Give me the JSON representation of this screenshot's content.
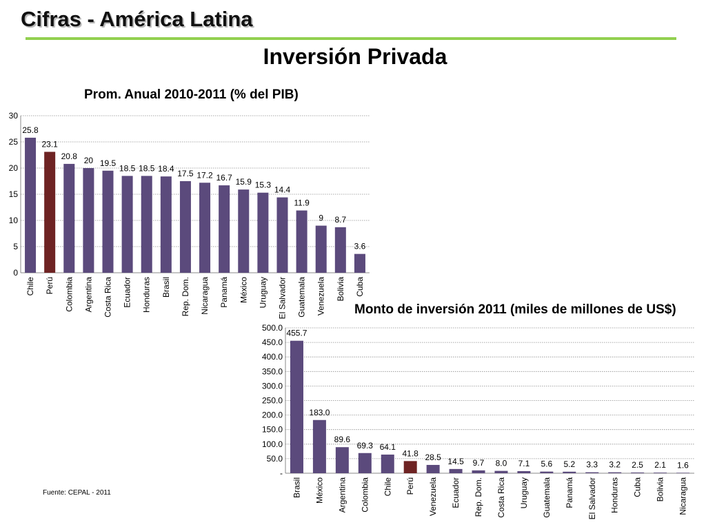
{
  "slide": {
    "title": "Cifras - América Latina",
    "heading": "Inversión Privada",
    "source": "Fuente: CEPAL - 2011"
  },
  "colors": {
    "bar": "#5b4a7c",
    "highlight": "#6e2323",
    "accent_line": "#92d050",
    "grid": "#8c8c8c"
  },
  "chart_data": [
    {
      "type": "bar",
      "title": "Prom. Anual 2010-2011  (% del PIB)",
      "categories": [
        "Chile",
        "Perú",
        "Colombia",
        "Argentina",
        "Costa Rica",
        "Ecuador",
        "Honduras",
        "Brasil",
        "Rep. Dom.",
        "Nicaragua",
        "Panamá",
        "México",
        "Uruguay",
        "El Salvador",
        "Guatemala",
        "Venezuela",
        "Bolivia",
        "Cuba"
      ],
      "values": [
        25.8,
        23.1,
        20.8,
        20,
        19.5,
        18.5,
        18.5,
        18.4,
        17.5,
        17.2,
        16.7,
        15.9,
        15.3,
        14.4,
        11.9,
        9,
        8.7,
        3.6
      ],
      "data_labels": [
        "25.8",
        "23.1",
        "20.8",
        "20",
        "19.5",
        "18.5",
        "18.5",
        "18.4",
        "17.5",
        "17.2",
        "16.7",
        "15.9",
        "15.3",
        "14.4",
        "11.9",
        "9",
        "8.7",
        "3.6"
      ],
      "highlight": "Perú",
      "ylim": [
        0,
        30
      ],
      "yticks": [
        0,
        5,
        10,
        15,
        20,
        25,
        30
      ],
      "ytick_labels": [
        "0",
        "5",
        "10",
        "15",
        "20",
        "25",
        "30"
      ],
      "grid": true,
      "legend": "none"
    },
    {
      "type": "bar",
      "title": "Monto de inversión  2011 (miles de millones de US$)",
      "categories": [
        "Brasil",
        "México",
        "Argentina",
        "Colombia",
        "Chile",
        "Perú",
        "Venezuela",
        "Ecuador",
        "Rep. Dom.",
        "Costa Rica",
        "Uruguay",
        "Guatemala",
        "Panamá",
        "El Salvador",
        "Honduras",
        "Cuba",
        "Bolivia",
        "Nicaragua"
      ],
      "values": [
        455.7,
        183.0,
        89.6,
        69.3,
        64.1,
        41.8,
        28.5,
        14.5,
        9.7,
        8.0,
        7.1,
        5.6,
        5.2,
        3.3,
        3.2,
        2.5,
        2.1,
        1.6
      ],
      "data_labels": [
        "455.7",
        "183.0",
        "89.6",
        "69.3",
        "64.1",
        "41.8",
        "28.5",
        "14.5",
        "9.7",
        "8.0",
        "7.1",
        "5.6",
        "5.2",
        "3.3",
        "3.2",
        "2.5",
        "2.1",
        "1.6"
      ],
      "highlight": "Perú",
      "ylim": [
        0,
        500
      ],
      "yticks": [
        0,
        50,
        100,
        150,
        200,
        250,
        300,
        350,
        400,
        450,
        500
      ],
      "ytick_labels": [
        "-",
        "50.0",
        "100.0",
        "150.0",
        "200.0",
        "250.0",
        "300.0",
        "350.0",
        "400.0",
        "450.0",
        "500.0"
      ],
      "grid": true,
      "legend": "none"
    }
  ]
}
